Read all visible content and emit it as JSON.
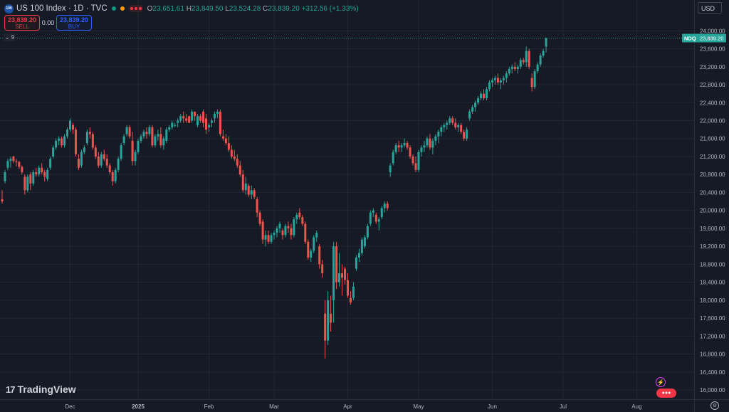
{
  "header": {
    "badge": "100",
    "title": "US 100 Index · 1D · TVC",
    "open_label": "O",
    "open": "23,651.61",
    "high_label": "H",
    "high": "23,849.50",
    "low_label": "L",
    "low": "23,524.28",
    "close_label": "C",
    "close": "23,839.20",
    "change": "+312.56 (+1.33%)"
  },
  "trade": {
    "sell_price": "23,839.20",
    "sell_label": "SELL",
    "spread": "0.00",
    "buy_price": "23,839.20",
    "buy_label": "BUY"
  },
  "indicators_toggle": "9",
  "currency": "USD",
  "watermark": "TradingView",
  "watermark_logo": "17",
  "settings_icon": "gear-icon",
  "colors": {
    "up": "#26a69a",
    "down": "#ef5350",
    "background": "#161a25",
    "grid": "#232632",
    "last_price_tag": "#26a69a"
  },
  "chart_data": {
    "type": "candlestick",
    "symbol": "NDQ",
    "last_price": 23839.2,
    "last_price_label": "23,839.20",
    "ylim": [
      15850,
      24250
    ],
    "y_ticks": [
      16000,
      16400,
      16800,
      17200,
      17600,
      18000,
      18400,
      18800,
      19200,
      19600,
      20000,
      20400,
      20800,
      21200,
      21600,
      22000,
      22400,
      22800,
      23200,
      23600,
      24000
    ],
    "y_tick_labels": [
      "16,000.00",
      "16,400.00",
      "16,800.00",
      "17,200.00",
      "17,600.00",
      "18,000.00",
      "18,400.00",
      "18,800.00",
      "19,200.00",
      "19,600.00",
      "20,000.00",
      "20,400.00",
      "20,800.00",
      "21,200.00",
      "21,600.00",
      "22,000.00",
      "22,400.00",
      "22,800.00",
      "23,200.00",
      "23,600.00",
      "24,000.00"
    ],
    "x_labels": [
      {
        "label": "Dec",
        "bar": 24,
        "bold": false
      },
      {
        "label": "2025",
        "bar": 48,
        "bold": true
      },
      {
        "label": "Feb",
        "bar": 73,
        "bold": false
      },
      {
        "label": "Mar",
        "bar": 96,
        "bold": false
      },
      {
        "label": "Apr",
        "bar": 122,
        "bold": false
      },
      {
        "label": "May",
        "bar": 147,
        "bold": false
      },
      {
        "label": "Jun",
        "bar": 173,
        "bold": false
      },
      {
        "label": "Jul",
        "bar": 198,
        "bold": false
      },
      {
        "label": "Aug",
        "bar": 224,
        "bold": false
      }
    ],
    "candles": [
      [
        20250,
        20450,
        20150,
        20200
      ],
      [
        20650,
        20900,
        20600,
        20850
      ],
      [
        20950,
        21150,
        20900,
        21100
      ],
      [
        21100,
        21200,
        20950,
        21150
      ],
      [
        21200,
        21220,
        21050,
        21100
      ],
      [
        21100,
        21150,
        20980,
        21080
      ],
      [
        21080,
        21100,
        20920,
        20970
      ],
      [
        20970,
        21000,
        20800,
        20850
      ],
      [
        20750,
        20800,
        20350,
        20450
      ],
      [
        20450,
        20800,
        20400,
        20750
      ],
      [
        20800,
        20850,
        20450,
        20600
      ],
      [
        20600,
        20900,
        20550,
        20850
      ],
      [
        20850,
        20950,
        20750,
        20800
      ],
      [
        20800,
        21000,
        20750,
        20950
      ],
      [
        20950,
        21050,
        20800,
        20850
      ],
      [
        20850,
        20900,
        20650,
        20750
      ],
      [
        20700,
        20950,
        20650,
        20900
      ],
      [
        20950,
        21200,
        20900,
        21150
      ],
      [
        21200,
        21450,
        21150,
        21400
      ],
      [
        21400,
        21600,
        21350,
        21550
      ],
      [
        21550,
        21650,
        21450,
        21600
      ],
      [
        21600,
        21650,
        21400,
        21450
      ],
      [
        21450,
        21700,
        21400,
        21650
      ],
      [
        21650,
        21850,
        21600,
        21800
      ],
      [
        21800,
        22050,
        21750,
        22000
      ],
      [
        21900,
        21950,
        21700,
        21800
      ],
      [
        21800,
        21850,
        21200,
        21250
      ],
      [
        21150,
        21250,
        20900,
        20950
      ],
      [
        21000,
        21350,
        20950,
        21300
      ],
      [
        21300,
        21450,
        21250,
        21400
      ],
      [
        21500,
        21800,
        21450,
        21750
      ],
      [
        21750,
        21850,
        21600,
        21700
      ],
      [
        21700,
        21750,
        21350,
        21400
      ],
      [
        21400,
        21450,
        21150,
        21200
      ],
      [
        21200,
        21300,
        20950,
        21000
      ],
      [
        21000,
        21300,
        20950,
        21250
      ],
      [
        21250,
        21350,
        21100,
        21150
      ],
      [
        21150,
        21250,
        20950,
        21000
      ],
      [
        21000,
        21050,
        20800,
        20850
      ],
      [
        20850,
        20900,
        20550,
        20650
      ],
      [
        20650,
        20950,
        20600,
        20900
      ],
      [
        20900,
        21200,
        20850,
        21150
      ],
      [
        21150,
        21500,
        21100,
        21450
      ],
      [
        21500,
        21700,
        21450,
        21650
      ],
      [
        21700,
        21900,
        21650,
        21850
      ],
      [
        21850,
        21900,
        21600,
        21650
      ],
      [
        21550,
        21750,
        21000,
        21100
      ],
      [
        21100,
        21350,
        21000,
        21300
      ],
      [
        21300,
        21600,
        21250,
        21550
      ],
      [
        21550,
        21700,
        21500,
        21650
      ],
      [
        21650,
        21800,
        21600,
        21750
      ],
      [
        21750,
        21850,
        21600,
        21700
      ],
      [
        21700,
        21900,
        21650,
        21850
      ],
      [
        21850,
        21900,
        21400,
        21450
      ],
      [
        21450,
        21700,
        21400,
        21650
      ],
      [
        21650,
        21800,
        21550,
        21700
      ],
      [
        21700,
        21850,
        21400,
        21450
      ],
      [
        21450,
        21650,
        21350,
        21600
      ],
      [
        21550,
        21850,
        21500,
        21800
      ],
      [
        21800,
        21900,
        21750,
        21850
      ],
      [
        21850,
        22000,
        21800,
        21950
      ],
      [
        21900,
        21950,
        21850,
        21900
      ],
      [
        21950,
        22050,
        21850,
        22000
      ],
      [
        22000,
        22150,
        21950,
        22100
      ],
      [
        22100,
        22200,
        21950,
        22050
      ],
      [
        22050,
        22150,
        21950,
        22000
      ],
      [
        22100,
        22100,
        21950,
        21950
      ],
      [
        22000,
        22250,
        21950,
        22200
      ],
      [
        22200,
        22200,
        22000,
        22100
      ],
      [
        21900,
        22150,
        21850,
        22100
      ],
      [
        22100,
        22150,
        21950,
        22000
      ],
      [
        22200,
        22250,
        21850,
        21950
      ],
      [
        22050,
        22150,
        21700,
        21800
      ],
      [
        21850,
        21950,
        21750,
        21900
      ],
      [
        21950,
        22050,
        21850,
        22000
      ],
      [
        22050,
        22200,
        21950,
        22150
      ],
      [
        22150,
        22250,
        22050,
        22200
      ],
      [
        22200,
        22250,
        21650,
        21700
      ],
      [
        21650,
        21800,
        21550,
        21600
      ],
      [
        21600,
        21700,
        21450,
        21500
      ],
      [
        21500,
        21650,
        21300,
        21350
      ],
      [
        21350,
        21450,
        21150,
        21200
      ],
      [
        21200,
        21350,
        21100,
        21150
      ],
      [
        21150,
        21250,
        20950,
        21000
      ],
      [
        21000,
        21100,
        20750,
        20800
      ],
      [
        20800,
        20900,
        20400,
        20450
      ],
      [
        20450,
        20750,
        20350,
        20600
      ],
      [
        20550,
        20600,
        20300,
        20350
      ],
      [
        20350,
        20550,
        20250,
        20450
      ],
      [
        20450,
        20500,
        20250,
        20300
      ],
      [
        20250,
        20300,
        19850,
        19950
      ],
      [
        19950,
        20000,
        19650,
        19700
      ],
      [
        19750,
        19800,
        19250,
        19350
      ],
      [
        19350,
        19550,
        19200,
        19450
      ],
      [
        19450,
        19550,
        19250,
        19300
      ],
      [
        19300,
        19500,
        19250,
        19450
      ],
      [
        19450,
        19550,
        19350,
        19500
      ],
      [
        19500,
        19650,
        19400,
        19600
      ],
      [
        19600,
        19750,
        19500,
        19700
      ],
      [
        19550,
        19600,
        19350,
        19450
      ],
      [
        19450,
        19700,
        19400,
        19650
      ],
      [
        19650,
        19750,
        19500,
        19600
      ],
      [
        19600,
        19700,
        19350,
        19450
      ],
      [
        19450,
        19850,
        19400,
        19800
      ],
      [
        19800,
        19950,
        19700,
        19900
      ],
      [
        19950,
        20050,
        19800,
        19850
      ],
      [
        19850,
        19900,
        19650,
        19700
      ],
      [
        19700,
        19750,
        19250,
        19300
      ],
      [
        19300,
        19350,
        18900,
        18950
      ],
      [
        18950,
        19150,
        18850,
        19100
      ],
      [
        19100,
        19450,
        19050,
        19400
      ],
      [
        19400,
        19550,
        19300,
        19500
      ],
      [
        19200,
        19250,
        18700,
        18800
      ],
      [
        18800,
        18900,
        18500,
        18600
      ],
      [
        17700,
        18000,
        16700,
        17100
      ],
      [
        17100,
        18200,
        17000,
        18000
      ],
      [
        17700,
        18100,
        17300,
        17500
      ],
      [
        18000,
        19300,
        17500,
        19200
      ],
      [
        19200,
        19300,
        18250,
        18400
      ],
      [
        18400,
        19050,
        18300,
        18600
      ],
      [
        18600,
        18800,
        18100,
        18500
      ],
      [
        18700,
        18750,
        18350,
        18450
      ],
      [
        18450,
        18600,
        18050,
        18100
      ],
      [
        18050,
        18200,
        17900,
        17950
      ],
      [
        18050,
        18400,
        18000,
        18300
      ],
      [
        18700,
        19000,
        18650,
        18950
      ],
      [
        18950,
        19150,
        18850,
        19050
      ],
      [
        19050,
        19400,
        19000,
        19350
      ],
      [
        19200,
        19450,
        19150,
        19400
      ],
      [
        19400,
        19700,
        19350,
        19650
      ],
      [
        19700,
        20000,
        19650,
        19950
      ],
      [
        19950,
        20050,
        19850,
        20000
      ],
      [
        19900,
        19950,
        19700,
        19750
      ],
      [
        19750,
        19850,
        19550,
        19800
      ],
      [
        19850,
        20100,
        19800,
        20050
      ],
      [
        20050,
        20200,
        19950,
        20150
      ],
      [
        20150,
        20200,
        20000,
        20050
      ],
      [
        20850,
        21050,
        20750,
        21000
      ],
      [
        21050,
        21350,
        21000,
        21300
      ],
      [
        21300,
        21500,
        21250,
        21450
      ],
      [
        21450,
        21550,
        21300,
        21400
      ],
      [
        21400,
        21500,
        21300,
        21450
      ],
      [
        21450,
        21600,
        21400,
        21500
      ],
      [
        21500,
        21550,
        21350,
        21400
      ],
      [
        21400,
        21450,
        21150,
        21200
      ],
      [
        21200,
        21250,
        21000,
        21050
      ],
      [
        21050,
        21200,
        20850,
        20900
      ],
      [
        20900,
        21350,
        20850,
        21300
      ],
      [
        21300,
        21450,
        21200,
        21400
      ],
      [
        21400,
        21550,
        21300,
        21450
      ],
      [
        21450,
        21650,
        21400,
        21600
      ],
      [
        21600,
        21700,
        21350,
        21400
      ],
      [
        21400,
        21600,
        21250,
        21550
      ],
      [
        21550,
        21700,
        21450,
        21650
      ],
      [
        21650,
        21800,
        21500,
        21750
      ],
      [
        21750,
        21900,
        21650,
        21850
      ],
      [
        21850,
        21950,
        21750,
        21900
      ],
      [
        21900,
        22000,
        21800,
        21950
      ],
      [
        21950,
        22100,
        21900,
        22050
      ],
      [
        22050,
        22100,
        21900,
        21950
      ],
      [
        21950,
        22050,
        21800,
        21850
      ],
      [
        21850,
        21950,
        21750,
        21900
      ],
      [
        21900,
        21950,
        21700,
        21750
      ],
      [
        21750,
        21800,
        21550,
        21600
      ],
      [
        21600,
        21850,
        21550,
        21800
      ],
      [
        22050,
        22250,
        22000,
        22200
      ],
      [
        22200,
        22350,
        22150,
        22300
      ],
      [
        22300,
        22450,
        22200,
        22400
      ],
      [
        22400,
        22550,
        22350,
        22500
      ],
      [
        22500,
        22650,
        22450,
        22600
      ],
      [
        22600,
        22700,
        22450,
        22500
      ],
      [
        22500,
        22750,
        22450,
        22700
      ],
      [
        22700,
        22900,
        22650,
        22850
      ],
      [
        22850,
        22950,
        22750,
        22900
      ],
      [
        22900,
        23000,
        22800,
        22950
      ],
      [
        22950,
        23050,
        22800,
        22850
      ],
      [
        22850,
        22950,
        22700,
        22900
      ],
      [
        22900,
        23000,
        22800,
        22950
      ],
      [
        22950,
        23100,
        22850,
        23050
      ],
      [
        23050,
        23200,
        23000,
        23150
      ],
      [
        23150,
        23250,
        23050,
        23200
      ],
      [
        23200,
        23300,
        23100,
        23150
      ],
      [
        23150,
        23250,
        23050,
        23200
      ],
      [
        23200,
        23400,
        23150,
        23350
      ],
      [
        23350,
        23400,
        23250,
        23300
      ],
      [
        23300,
        23650,
        23200,
        23550
      ],
      [
        23550,
        23600,
        23150,
        23200
      ],
      [
        22950,
        23050,
        22650,
        22750
      ],
      [
        22750,
        23150,
        22700,
        23100
      ],
      [
        23100,
        23300,
        23050,
        23250
      ],
      [
        23250,
        23500,
        23200,
        23450
      ],
      [
        23450,
        23600,
        23400,
        23550
      ],
      [
        23650,
        23850,
        23520,
        23839.2
      ]
    ]
  }
}
